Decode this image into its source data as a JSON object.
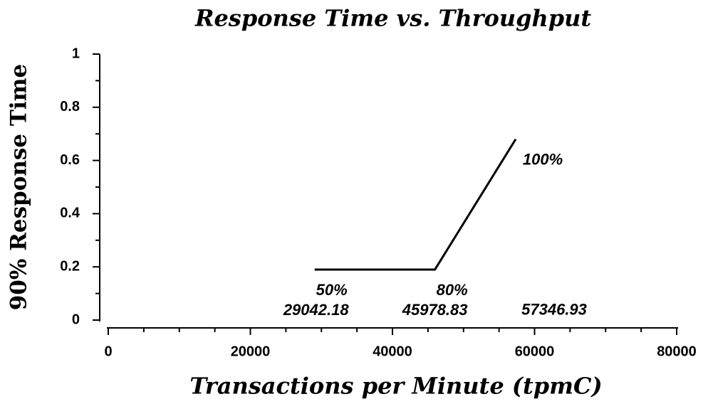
{
  "chart_data": {
    "type": "line",
    "title": "Response Time vs. Throughput",
    "x_label": "Transactions per Minute (tpmC)",
    "y_label": "90% Response Time",
    "x": [
      29042.18,
      45978.83,
      57346.93
    ],
    "series": [
      {
        "color": "#000000",
        "values": [
          0.19,
          0.19,
          0.68
        ]
      }
    ],
    "point_labels": [
      "50%",
      "80%",
      "100%"
    ],
    "xlim": [
      0,
      80000
    ],
    "xticks": [
      0,
      20000,
      40000,
      60000,
      80000
    ],
    "xminorticks": [
      5000,
      10000,
      15000,
      25000,
      30000,
      35000,
      45000,
      50000,
      55000,
      65000,
      70000,
      75000
    ],
    "ylim": [
      0,
      1
    ],
    "yticks": [
      0,
      0.2,
      0.4,
      0.6,
      0.8,
      1
    ],
    "yminorticks": [
      0.1,
      0.3,
      0.5,
      0.7,
      0.9
    ],
    "grid": false
  }
}
